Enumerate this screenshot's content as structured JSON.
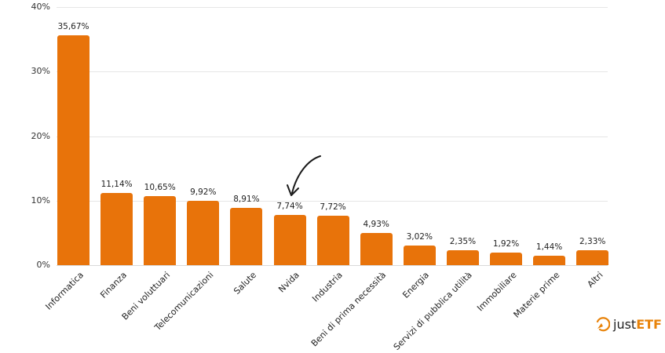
{
  "chart_data": {
    "type": "bar",
    "title": "",
    "xlabel": "",
    "ylabel": "",
    "ylim": [
      0,
      40
    ],
    "yticks": [
      "0%",
      "10%",
      "20%",
      "30%",
      "40%"
    ],
    "grid": true,
    "categories": [
      "Informatica",
      "Finanza",
      "Beni voluttuari",
      "Telecomunicazioni",
      "Salute",
      "Nvida",
      "Industria",
      "Beni di prima necessità",
      "Energia",
      "Servizi di pubblica utilità",
      "Immobiliare",
      "Materie prime",
      "Altri"
    ],
    "values": [
      35.67,
      11.14,
      10.65,
      9.92,
      8.91,
      7.74,
      7.72,
      4.93,
      3.02,
      2.35,
      1.92,
      1.44,
      2.33
    ],
    "value_labels": [
      "35,67%",
      "11,14%",
      "10,65%",
      "9,92%",
      "8,91%",
      "7,74%",
      "7,72%",
      "4,93%",
      "3,02%",
      "2,35%",
      "1,92%",
      "1,44%",
      "2,33%"
    ],
    "bar_color": "#e8730a",
    "annotations": [
      {
        "type": "hand-drawn-arrow",
        "target": "Nvida"
      }
    ]
  },
  "logo": {
    "prefix": "just",
    "suffix": "ETF",
    "accent_color": "#e8830a"
  }
}
